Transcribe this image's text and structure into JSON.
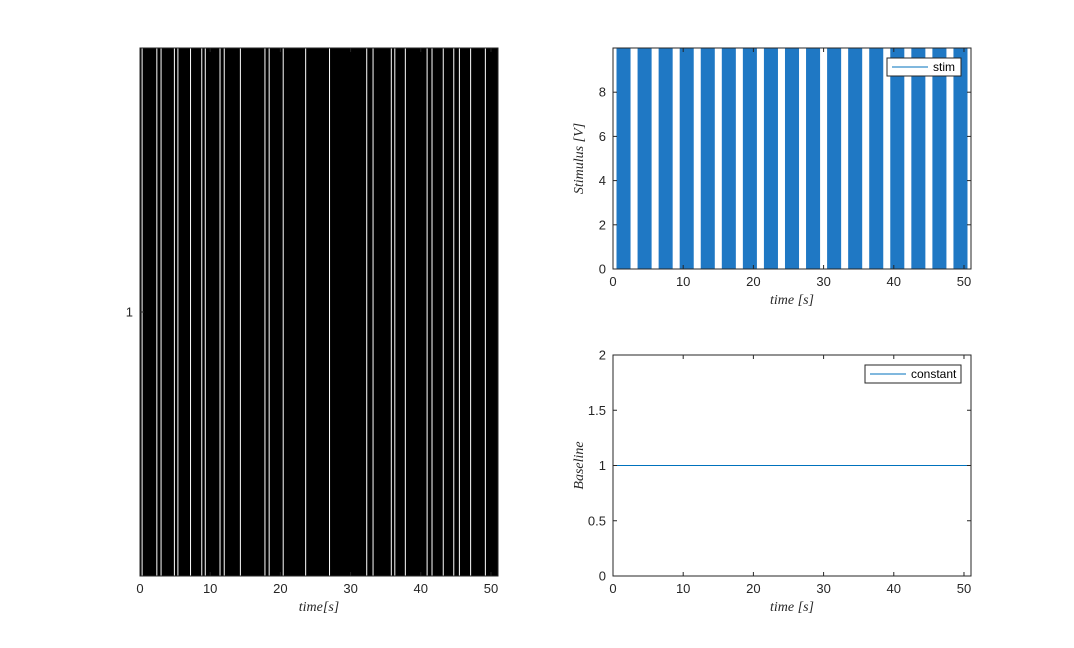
{
  "colors": {
    "background": "#ffffff",
    "raster": "#000000",
    "stim_fill": "#1f78c4",
    "line": "#0072bd",
    "axis": "#262626"
  },
  "chart_data": [
    {
      "id": "raster",
      "type": "heatmap",
      "xlabel": "time[s]",
      "ylabel": "",
      "xlim": [
        0,
        51
      ],
      "xticks": [
        0,
        10,
        20,
        30,
        40,
        50
      ],
      "yticks": [
        1
      ],
      "grid": false,
      "description_values": "spike-train raster for trial 1; white gaps mark times without spikes",
      "gap_times_s": [
        0.3,
        2.4,
        3.0,
        4.9,
        5.4,
        7.2,
        8.8,
        9.3,
        11.4,
        12.0,
        14.3,
        17.8,
        18.4,
        20.4,
        23.6,
        27.0,
        32.3,
        33.2,
        35.8,
        36.3,
        37.8,
        40.9,
        41.6,
        43.2,
        44.7,
        45.5,
        47.1,
        49.2
      ]
    },
    {
      "id": "stimulus",
      "type": "area",
      "xlabel": "time [s]",
      "ylabel": "Stimulus [V]",
      "xlim": [
        0,
        51
      ],
      "ylim": [
        0,
        10
      ],
      "xticks": [
        0,
        10,
        20,
        30,
        40,
        50
      ],
      "yticks": [
        0,
        2,
        4,
        6,
        8
      ],
      "legend": {
        "entries": [
          "stim"
        ],
        "placement": "top-right"
      },
      "grid": false,
      "series": [
        {
          "name": "stim",
          "amplitude": 10,
          "period_s": 3.0,
          "on_duration_s": 2.0,
          "first_onset_s": 0.5,
          "stop_s": 51
        }
      ]
    },
    {
      "id": "baseline",
      "type": "line",
      "xlabel": "time [s]",
      "ylabel": "Baseline",
      "xlim": [
        0,
        51
      ],
      "ylim": [
        0,
        2
      ],
      "xticks": [
        0,
        10,
        20,
        30,
        40,
        50
      ],
      "yticks": [
        0,
        0.5,
        1,
        1.5,
        2
      ],
      "legend": {
        "entries": [
          "constant"
        ],
        "placement": "top-right"
      },
      "grid": false,
      "series": [
        {
          "name": "constant",
          "x": [
            0,
            51
          ],
          "y": [
            1,
            1
          ]
        }
      ]
    }
  ]
}
